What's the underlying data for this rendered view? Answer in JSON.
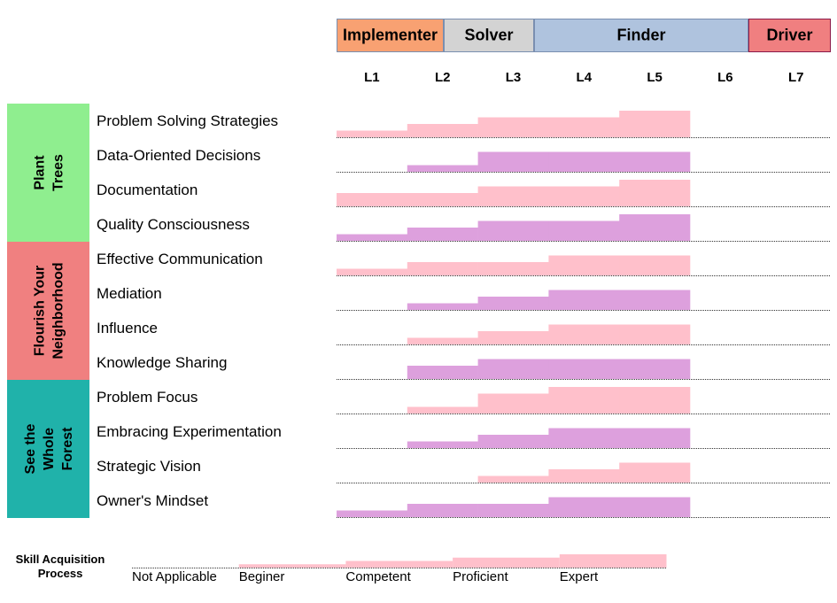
{
  "chart_data": {
    "type": "heatmap",
    "roles": [
      {
        "name": "Implementer",
        "levels": [
          "L1",
          "L2"
        ],
        "color": "#F8A172"
      },
      {
        "name": "Solver",
        "levels": [
          "L2",
          "L3"
        ],
        "color": "#D3D3D3"
      },
      {
        "name": "Finder",
        "levels": [
          "L3",
          "L5"
        ],
        "color": "#AFC3DE"
      },
      {
        "name": "Driver",
        "levels": [
          "L6",
          "L7"
        ],
        "color": "#F07F80"
      }
    ],
    "levels": [
      "L1",
      "L2",
      "L3",
      "L4",
      "L5",
      "L6",
      "L7"
    ],
    "groups": [
      {
        "name": "Plant Trees",
        "lines": [
          "Plant",
          "Trees"
        ],
        "color": "#8FEE8F",
        "skills": [
          {
            "name": "Problem Solving Strategies",
            "color": "#FFC0CB",
            "values": [
              1,
              2,
              3,
              3,
              4,
              0,
              0
            ]
          },
          {
            "name": "Data-Oriented Decisions",
            "color": "#DDA0DD",
            "values": [
              0,
              1,
              3,
              3,
              3,
              0,
              0
            ]
          },
          {
            "name": "Documentation",
            "color": "#FFC0CB",
            "values": [
              2,
              2,
              3,
              3,
              4,
              0,
              0
            ]
          },
          {
            "name": "Quality Consciousness",
            "color": "#DDA0DD",
            "values": [
              1,
              2,
              3,
              3,
              4,
              0,
              0
            ]
          }
        ]
      },
      {
        "name": "Flourish Your Neighborhood",
        "lines": [
          "Flourish Your",
          "Neighborhood"
        ],
        "color": "#F08080",
        "skills": [
          {
            "name": "Effective Communication",
            "color": "#FFC0CB",
            "values": [
              1,
              2,
              2,
              3,
              3,
              0,
              0
            ]
          },
          {
            "name": "Mediation",
            "color": "#DDA0DD",
            "values": [
              0,
              1,
              2,
              3,
              3,
              0,
              0
            ]
          },
          {
            "name": "Influence",
            "color": "#FFC0CB",
            "values": [
              0,
              1,
              2,
              3,
              3,
              0,
              0
            ]
          },
          {
            "name": "Knowledge Sharing",
            "color": "#DDA0DD",
            "values": [
              0,
              2,
              3,
              3,
              3,
              0,
              0
            ]
          }
        ]
      },
      {
        "name": "See the Whole Forest",
        "lines": [
          "See the",
          "Whole",
          "Forest"
        ],
        "color": "#20B2AA",
        "skills": [
          {
            "name": "Problem Focus",
            "color": "#FFC0CB",
            "values": [
              0,
              1,
              3,
              4,
              4,
              0,
              0
            ]
          },
          {
            "name": "Embracing Experimentation",
            "color": "#DDA0DD",
            "values": [
              0,
              1,
              2,
              3,
              3,
              0,
              0
            ]
          },
          {
            "name": "Strategic Vision",
            "color": "#FFC0CB",
            "values": [
              0,
              0,
              1,
              2,
              3,
              0,
              0
            ]
          },
          {
            "name": "Owner's Mindset",
            "color": "#DDA0DD",
            "values": [
              1,
              2,
              2,
              3,
              3,
              0,
              0
            ]
          }
        ]
      }
    ],
    "legend": {
      "title_lines": [
        "Skill Acquisition",
        "Process"
      ],
      "color": "#FFC0CB",
      "items": [
        {
          "label": "Not Applicable",
          "value": 0
        },
        {
          "label": "Beginer",
          "value": 1
        },
        {
          "label": "Competent",
          "value": 2
        },
        {
          "label": "Proficient",
          "value": 3
        },
        {
          "label": "Expert",
          "value": 4
        }
      ]
    },
    "value_range": [
      0,
      4
    ]
  }
}
